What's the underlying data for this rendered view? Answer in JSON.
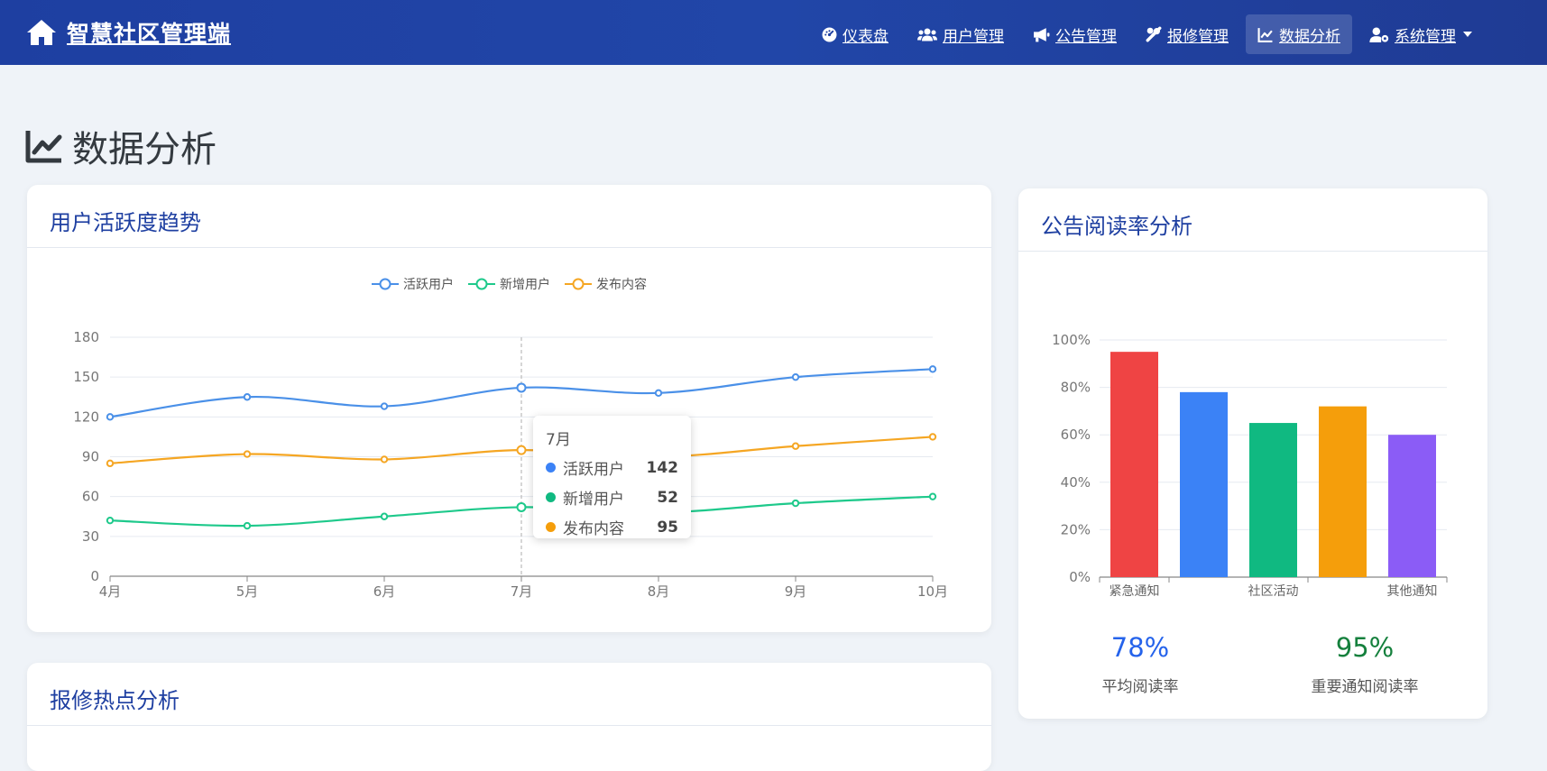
{
  "app": {
    "title": "智慧社区管理端"
  },
  "nav": {
    "items": [
      {
        "label": "仪表盘",
        "icon": "dashboard-icon"
      },
      {
        "label": "用户管理",
        "icon": "users-icon"
      },
      {
        "label": "公告管理",
        "icon": "megaphone-icon"
      },
      {
        "label": "报修管理",
        "icon": "tools-icon"
      },
      {
        "label": "数据分析",
        "icon": "line-chart-icon",
        "active": true
      },
      {
        "label": "系统管理",
        "icon": "user-cog-icon",
        "dropdown": true
      }
    ]
  },
  "page": {
    "title": "数据分析"
  },
  "trend_card": {
    "title": "用户活跃度趋势"
  },
  "read_card": {
    "title": "公告阅读率分析"
  },
  "repair_card": {
    "title": "报修热点分析"
  },
  "tooltip": {
    "title": "7月",
    "rows": [
      {
        "name": "活跃用户",
        "value": "142",
        "color": "#3b82f6"
      },
      {
        "name": "新增用户",
        "value": "52",
        "color": "#10b981"
      },
      {
        "name": "发布内容",
        "value": "95",
        "color": "#f59e0b"
      }
    ]
  },
  "stats": {
    "avg_value": "78%",
    "avg_label": "平均阅读率",
    "avg_color": "#2563eb",
    "important_value": "95%",
    "important_label": "重要通知阅读率",
    "important_color": "#15803d"
  },
  "chart_data": [
    {
      "type": "line",
      "x": [
        "4月",
        "5月",
        "6月",
        "7月",
        "8月",
        "9月",
        "10月"
      ],
      "ylim": [
        0,
        180
      ],
      "yticks": [
        "0",
        "30",
        "60",
        "90",
        "120",
        "150",
        "180"
      ],
      "grid": true,
      "legend_position": "top-center",
      "series": [
        {
          "name": "活跃用户",
          "color": "#4a90e8",
          "values": [
            120,
            135,
            128,
            142,
            138,
            150,
            156
          ]
        },
        {
          "name": "新增用户",
          "color": "#1ec98b",
          "values": [
            42,
            38,
            45,
            52,
            48,
            55,
            60
          ]
        },
        {
          "name": "发布内容",
          "color": "#f5a623",
          "values": [
            85,
            92,
            88,
            95,
            90,
            98,
            105
          ]
        }
      ]
    },
    {
      "type": "bar",
      "categories": [
        "紧急通知",
        "",
        "社区活动",
        "",
        "其他通知"
      ],
      "values": [
        95,
        78,
        65,
        72,
        60
      ],
      "colors": [
        "#ef4444",
        "#3b82f6",
        "#10b981",
        "#f59e0b",
        "#8b5cf6"
      ],
      "ylim": [
        0,
        100
      ],
      "yticks": [
        "0%",
        "20%",
        "40%",
        "60%",
        "80%",
        "100%"
      ],
      "grid": true
    }
  ]
}
